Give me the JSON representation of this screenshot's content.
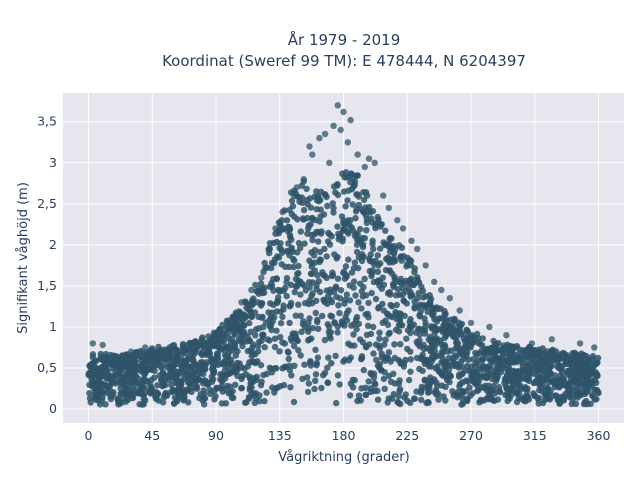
{
  "chart_data": {
    "type": "scatter",
    "title_line1": "År 1979 - 2019",
    "title_line2": "Koordinat (Sweref 99 TM): E 478444, N 6204397",
    "xlabel": "Vågriktning (grader)",
    "ylabel": "Signifikant våghöjd (m)",
    "xlim": [
      -18,
      378
    ],
    "ylim": [
      -0.17,
      3.85
    ],
    "x_ticks": [
      0,
      45,
      90,
      135,
      180,
      225,
      270,
      315,
      360
    ],
    "x_tick_labels": [
      "0",
      "45",
      "90",
      "135",
      "180",
      "225",
      "270",
      "315",
      "360"
    ],
    "y_ticks": [
      0,
      0.5,
      1,
      1.5,
      2,
      2.5,
      3,
      3.5
    ],
    "y_tick_labels": [
      "0",
      "0,5",
      "1",
      "1,5",
      "2",
      "2,5",
      "3",
      "3,5"
    ],
    "grid": true,
    "marker_color": "#2f5369",
    "plot_bg": "#e5e6ee",
    "envelope": [
      {
        "x": 0,
        "y": 0.7
      },
      {
        "x": 20,
        "y": 0.65
      },
      {
        "x": 45,
        "y": 0.75
      },
      {
        "x": 70,
        "y": 0.8
      },
      {
        "x": 90,
        "y": 0.95
      },
      {
        "x": 105,
        "y": 1.2
      },
      {
        "x": 120,
        "y": 1.6
      },
      {
        "x": 130,
        "y": 2.15
      },
      {
        "x": 140,
        "y": 2.55
      },
      {
        "x": 150,
        "y": 2.85
      },
      {
        "x": 160,
        "y": 2.65
      },
      {
        "x": 170,
        "y": 2.75
      },
      {
        "x": 180,
        "y": 2.9
      },
      {
        "x": 190,
        "y": 2.85
      },
      {
        "x": 200,
        "y": 2.5
      },
      {
        "x": 210,
        "y": 2.2
      },
      {
        "x": 225,
        "y": 1.9
      },
      {
        "x": 240,
        "y": 1.4
      },
      {
        "x": 255,
        "y": 1.15
      },
      {
        "x": 270,
        "y": 0.95
      },
      {
        "x": 290,
        "y": 0.8
      },
      {
        "x": 315,
        "y": 0.75
      },
      {
        "x": 340,
        "y": 0.7
      },
      {
        "x": 360,
        "y": 0.65
      }
    ],
    "outliers": [
      {
        "x": 176,
        "y": 3.7
      },
      {
        "x": 180,
        "y": 3.62
      },
      {
        "x": 185,
        "y": 3.52
      },
      {
        "x": 173,
        "y": 3.45
      },
      {
        "x": 167,
        "y": 3.35
      },
      {
        "x": 178,
        "y": 3.4
      },
      {
        "x": 163,
        "y": 3.3
      },
      {
        "x": 183,
        "y": 3.25
      },
      {
        "x": 156,
        "y": 3.2
      },
      {
        "x": 190,
        "y": 3.1
      },
      {
        "x": 198,
        "y": 3.05
      },
      {
        "x": 202,
        "y": 3.0
      },
      {
        "x": 158,
        "y": 3.1
      },
      {
        "x": 170,
        "y": 3.0
      },
      {
        "x": 195,
        "y": 2.95
      },
      {
        "x": 208,
        "y": 2.6
      },
      {
        "x": 212,
        "y": 2.45
      },
      {
        "x": 218,
        "y": 2.3
      },
      {
        "x": 222,
        "y": 2.2
      },
      {
        "x": 228,
        "y": 2.05
      },
      {
        "x": 232,
        "y": 1.95
      },
      {
        "x": 238,
        "y": 1.75
      },
      {
        "x": 244,
        "y": 1.55
      },
      {
        "x": 249,
        "y": 1.45
      },
      {
        "x": 255,
        "y": 1.35
      },
      {
        "x": 262,
        "y": 1.2
      },
      {
        "x": 270,
        "y": 1.05
      },
      {
        "x": 283,
        "y": 1.0
      },
      {
        "x": 295,
        "y": 0.9
      },
      {
        "x": 313,
        "y": 0.8
      },
      {
        "x": 327,
        "y": 0.85
      },
      {
        "x": 347,
        "y": 0.8
      },
      {
        "x": 357,
        "y": 0.75
      },
      {
        "x": 80,
        "y": 0.85
      },
      {
        "x": 100,
        "y": 1.0
      },
      {
        "x": 108,
        "y": 1.3
      },
      {
        "x": 115,
        "y": 1.45
      },
      {
        "x": 122,
        "y": 1.6
      },
      {
        "x": 128,
        "y": 1.95
      },
      {
        "x": 132,
        "y": 2.2
      },
      {
        "x": 137,
        "y": 2.4
      },
      {
        "x": 145,
        "y": 2.6
      },
      {
        "x": 147,
        "y": 2.7
      },
      {
        "x": 152,
        "y": 2.8
      },
      {
        "x": 40,
        "y": 0.75
      },
      {
        "x": 30,
        "y": 0.7
      },
      {
        "x": 10,
        "y": 0.78
      },
      {
        "x": 3,
        "y": 0.8
      },
      {
        "x": 60,
        "y": 0.72
      },
      {
        "x": 286,
        "y": 0.62
      },
      {
        "x": 300,
        "y": 0.74
      }
    ]
  }
}
